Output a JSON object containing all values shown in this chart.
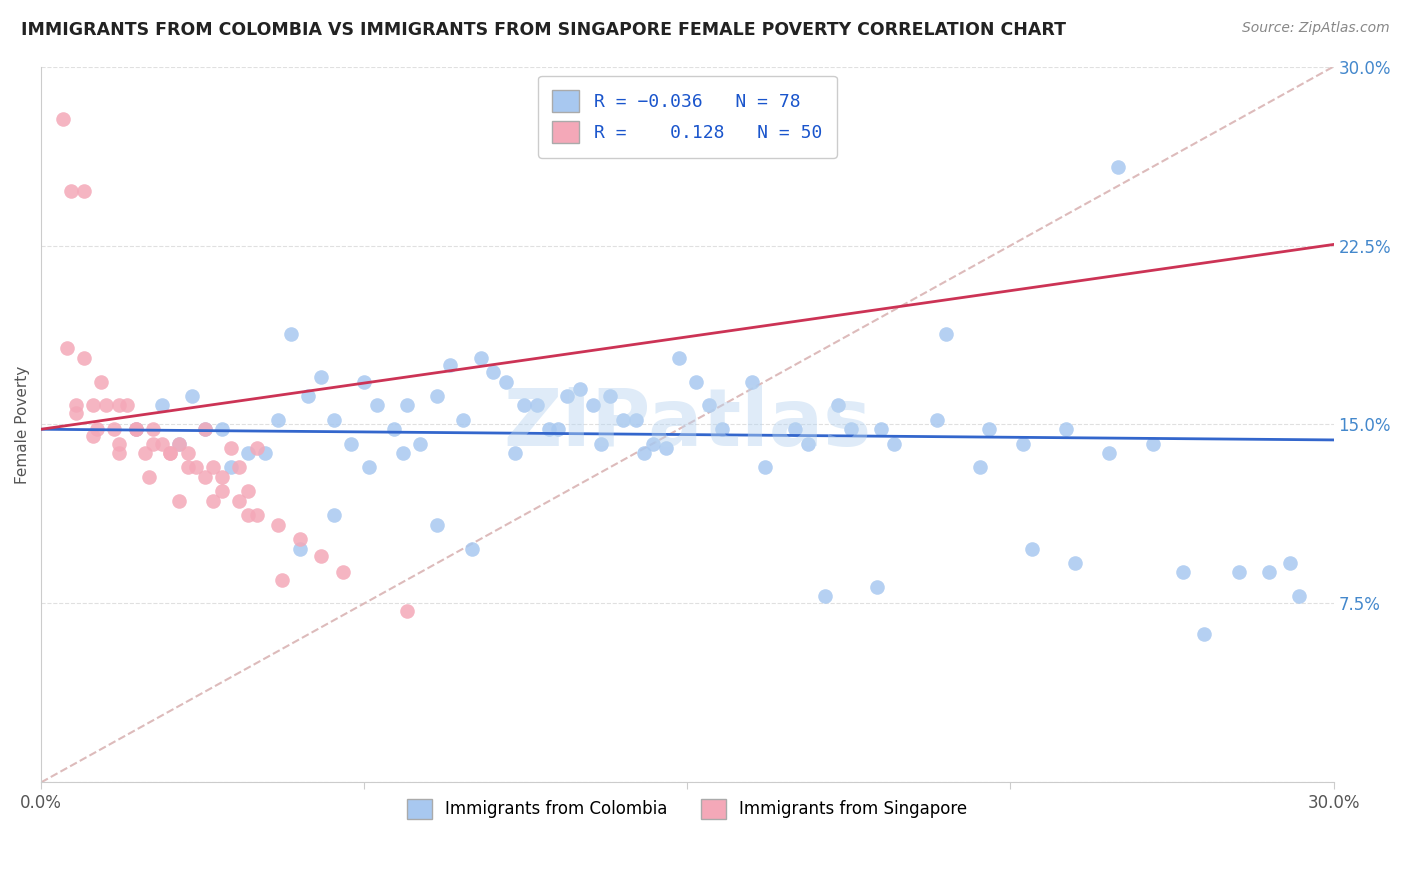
{
  "title": "IMMIGRANTS FROM COLOMBIA VS IMMIGRANTS FROM SINGAPORE FEMALE POVERTY CORRELATION CHART",
  "source": "Source: ZipAtlas.com",
  "ylabel": "Female Poverty",
  "legend_label1": "Immigrants from Colombia",
  "legend_label2": "Immigrants from Singapore",
  "R1": -0.036,
  "N1": 78,
  "R2": 0.128,
  "N2": 50,
  "color1": "#a8c8f0",
  "color2": "#f4a8b8",
  "trendline1_color": "#3366cc",
  "trendline2_color": "#cc3355",
  "diag_color": "#ddbbbb",
  "xmin": 0.0,
  "xmax": 0.3,
  "ymin": 0.0,
  "ymax": 0.3,
  "yticks": [
    0.0,
    0.075,
    0.15,
    0.225,
    0.3
  ],
  "ytick_labels": [
    "",
    "7.5%",
    "15.0%",
    "22.5%",
    "30.0%"
  ],
  "colombia_x": [
    0.022,
    0.028,
    0.035,
    0.042,
    0.048,
    0.055,
    0.062,
    0.068,
    0.072,
    0.078,
    0.082,
    0.088,
    0.092,
    0.098,
    0.102,
    0.108,
    0.112,
    0.118,
    0.122,
    0.128,
    0.132,
    0.138,
    0.142,
    0.148,
    0.152,
    0.058,
    0.065,
    0.075,
    0.085,
    0.095,
    0.105,
    0.115,
    0.125,
    0.135,
    0.145,
    0.155,
    0.165,
    0.175,
    0.185,
    0.195,
    0.158,
    0.168,
    0.178,
    0.188,
    0.198,
    0.208,
    0.218,
    0.228,
    0.238,
    0.248,
    0.032,
    0.038,
    0.044,
    0.052,
    0.06,
    0.068,
    0.076,
    0.084,
    0.092,
    0.1,
    0.11,
    0.12,
    0.13,
    0.14,
    0.21,
    0.22,
    0.23,
    0.24,
    0.25,
    0.258,
    0.265,
    0.27,
    0.278,
    0.285,
    0.29,
    0.292,
    0.182,
    0.194
  ],
  "colombia_y": [
    0.148,
    0.158,
    0.162,
    0.148,
    0.138,
    0.152,
    0.162,
    0.152,
    0.142,
    0.158,
    0.148,
    0.142,
    0.162,
    0.152,
    0.178,
    0.168,
    0.158,
    0.148,
    0.162,
    0.158,
    0.162,
    0.152,
    0.142,
    0.178,
    0.168,
    0.188,
    0.17,
    0.168,
    0.158,
    0.175,
    0.172,
    0.158,
    0.165,
    0.152,
    0.14,
    0.158,
    0.168,
    0.148,
    0.158,
    0.148,
    0.148,
    0.132,
    0.142,
    0.148,
    0.142,
    0.152,
    0.132,
    0.142,
    0.148,
    0.138,
    0.142,
    0.148,
    0.132,
    0.138,
    0.098,
    0.112,
    0.132,
    0.138,
    0.108,
    0.098,
    0.138,
    0.148,
    0.142,
    0.138,
    0.188,
    0.148,
    0.098,
    0.092,
    0.258,
    0.142,
    0.088,
    0.062,
    0.088,
    0.088,
    0.092,
    0.078,
    0.078,
    0.082
  ],
  "singapore_x": [
    0.005,
    0.007,
    0.008,
    0.01,
    0.012,
    0.013,
    0.015,
    0.017,
    0.018,
    0.02,
    0.022,
    0.024,
    0.026,
    0.028,
    0.03,
    0.032,
    0.034,
    0.036,
    0.038,
    0.04,
    0.042,
    0.044,
    0.046,
    0.048,
    0.05,
    0.006,
    0.01,
    0.014,
    0.018,
    0.022,
    0.026,
    0.03,
    0.034,
    0.038,
    0.042,
    0.046,
    0.05,
    0.055,
    0.06,
    0.065,
    0.008,
    0.012,
    0.018,
    0.025,
    0.032,
    0.04,
    0.048,
    0.056,
    0.07,
    0.085
  ],
  "singapore_y": [
    0.278,
    0.248,
    0.158,
    0.248,
    0.158,
    0.148,
    0.158,
    0.148,
    0.142,
    0.158,
    0.148,
    0.138,
    0.148,
    0.142,
    0.138,
    0.142,
    0.138,
    0.132,
    0.148,
    0.132,
    0.128,
    0.14,
    0.132,
    0.122,
    0.14,
    0.182,
    0.178,
    0.168,
    0.158,
    0.148,
    0.142,
    0.138,
    0.132,
    0.128,
    0.122,
    0.118,
    0.112,
    0.108,
    0.102,
    0.095,
    0.155,
    0.145,
    0.138,
    0.128,
    0.118,
    0.118,
    0.112,
    0.085,
    0.088,
    0.072
  ]
}
